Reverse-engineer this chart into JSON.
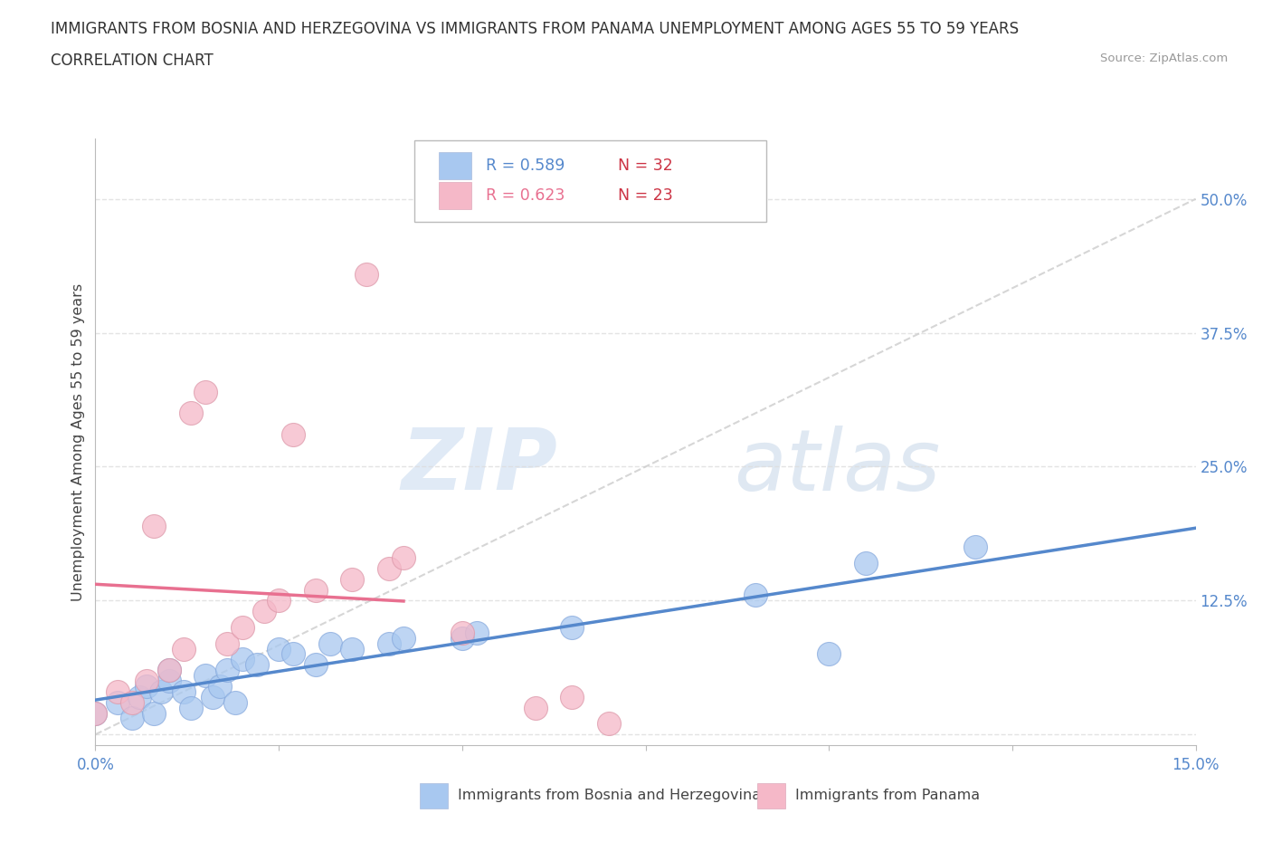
{
  "title_line1": "IMMIGRANTS FROM BOSNIA AND HERZEGOVINA VS IMMIGRANTS FROM PANAMA UNEMPLOYMENT AMONG AGES 55 TO 59 YEARS",
  "title_line2": "CORRELATION CHART",
  "source": "Source: ZipAtlas.com",
  "ylabel": "Unemployment Among Ages 55 to 59 years",
  "xlim": [
    0.0,
    0.15
  ],
  "ylim": [
    -0.01,
    0.556
  ],
  "yticks_right": [
    0.0,
    0.125,
    0.25,
    0.375,
    0.5
  ],
  "ytick_right_labels": [
    "",
    "12.5%",
    "25.0%",
    "37.5%",
    "50.0%"
  ],
  "legend_label1": "Immigrants from Bosnia and Herzegovina",
  "legend_label2": "Immigrants from Panama",
  "color_bosnia": "#a8c8f0",
  "color_panama": "#f5b8c8",
  "color_bosnia_line": "#5588cc",
  "color_panama_line": "#e87090",
  "color_diag": "#cccccc",
  "color_r_blue": "#5588cc",
  "color_n_red": "#cc3344",
  "color_r_pink": "#e87090",
  "watermark_zip": "ZIP",
  "watermark_atlas": "atlas",
  "background_color": "#ffffff",
  "grid_color": "#dddddd",
  "bosnia_x": [
    0.0,
    0.003,
    0.005,
    0.006,
    0.007,
    0.008,
    0.009,
    0.01,
    0.01,
    0.012,
    0.013,
    0.015,
    0.016,
    0.017,
    0.018,
    0.019,
    0.02,
    0.022,
    0.025,
    0.027,
    0.03,
    0.032,
    0.035,
    0.04,
    0.042,
    0.05,
    0.052,
    0.065,
    0.09,
    0.1,
    0.105,
    0.12
  ],
  "bosnia_y": [
    0.02,
    0.03,
    0.015,
    0.035,
    0.045,
    0.02,
    0.04,
    0.05,
    0.06,
    0.04,
    0.025,
    0.055,
    0.035,
    0.045,
    0.06,
    0.03,
    0.07,
    0.065,
    0.08,
    0.075,
    0.065,
    0.085,
    0.08,
    0.085,
    0.09,
    0.09,
    0.095,
    0.1,
    0.13,
    0.075,
    0.16,
    0.175
  ],
  "panama_x": [
    0.0,
    0.003,
    0.005,
    0.007,
    0.008,
    0.01,
    0.012,
    0.013,
    0.015,
    0.018,
    0.02,
    0.023,
    0.025,
    0.027,
    0.03,
    0.035,
    0.037,
    0.04,
    0.042,
    0.05,
    0.06,
    0.065,
    0.07
  ],
  "panama_y": [
    0.02,
    0.04,
    0.03,
    0.05,
    0.195,
    0.06,
    0.08,
    0.3,
    0.32,
    0.085,
    0.1,
    0.115,
    0.125,
    0.28,
    0.135,
    0.145,
    0.43,
    0.155,
    0.165,
    0.095,
    0.025,
    0.035,
    0.01
  ]
}
